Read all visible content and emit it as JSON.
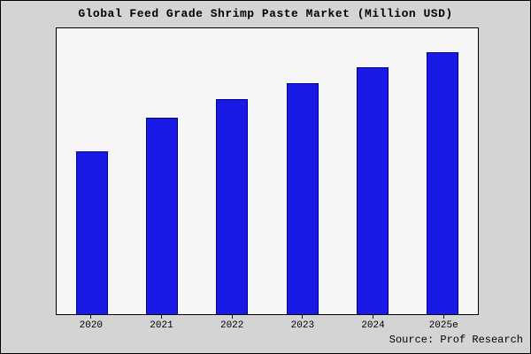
{
  "title": "Global Feed Grade Shrimp Paste Market (Million USD)",
  "source": "Source: Prof Research",
  "chart_data": {
    "type": "bar",
    "title": "Global Feed Grade Shrimp Paste Market (Million USD)",
    "categories": [
      "2020",
      "2021",
      "2022",
      "2023",
      "2024",
      "2025e"
    ],
    "values": [
      62,
      75,
      82,
      88,
      94,
      100
    ],
    "xlabel": "",
    "ylabel": "",
    "ylim": [
      0,
      109
    ],
    "grid": false,
    "legend": false,
    "bar_color": "#1a1ae6",
    "bar_edge_color": "#00008b",
    "plot_background": "#f6f6f6",
    "figure_background": "#d4d4d4",
    "source_label": "Source: Prof Research"
  }
}
